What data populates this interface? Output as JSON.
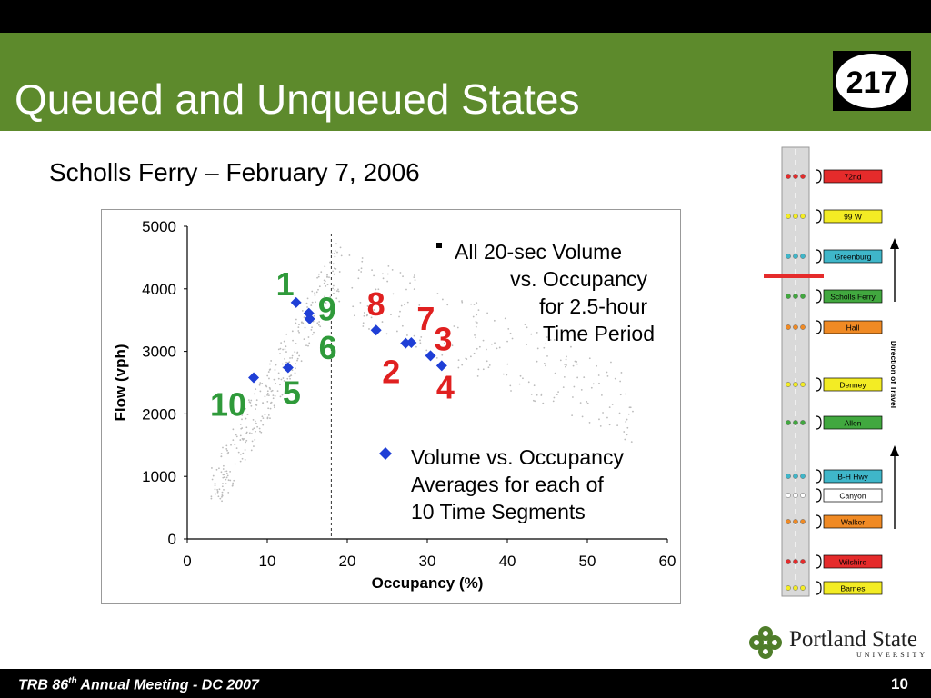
{
  "slide": {
    "title": "Queued and Unqueued States",
    "subtitle": "Scholls Ferry – February 7, 2006",
    "route_shield": "217",
    "footer": {
      "prefix": "TRB 86",
      "sup": "th",
      "suffix": " Annual Meeting - DC 2007"
    },
    "page_number": "10",
    "logo": {
      "name": "Portland State",
      "sub": "UNIVERSITY"
    }
  },
  "colors": {
    "title_bar": "#5d8a2c",
    "series_marker": "#1f3fd6",
    "label_green": "#2f9a3a",
    "label_red": "#e02020"
  },
  "chart_data": {
    "type": "scatter",
    "xlabel": "Occupancy (%)",
    "ylabel": "Flow (vph)",
    "xlim": [
      0,
      60
    ],
    "ylim": [
      0,
      5000
    ],
    "xticks": [
      "0",
      "10",
      "20",
      "30",
      "40",
      "50",
      "60"
    ],
    "yticks": [
      "0",
      "1000",
      "2000",
      "3000",
      "4000",
      "5000"
    ],
    "grid": false,
    "threshold_line_x": 18,
    "legend_top": [
      "All 20-sec Volume",
      "vs. Occupancy",
      "for 2.5-hour",
      "Time Period"
    ],
    "legend_bottom": [
      "Volume vs. Occupancy",
      "Averages for each of",
      "10 Time Segments"
    ],
    "series": [
      {
        "marker": "diamond",
        "points": [
          {
            "label": "1",
            "x": 13.6,
            "y": 3780,
            "group": "unqueued"
          },
          {
            "label": "9",
            "x": 15.2,
            "y": 3610,
            "group": "unqueued"
          },
          {
            "label": "6",
            "x": 15.3,
            "y": 3520,
            "group": "unqueued"
          },
          {
            "label": "5",
            "x": 12.6,
            "y": 2740,
            "group": "unqueued"
          },
          {
            "label": "10",
            "x": 8.3,
            "y": 2580,
            "group": "unqueued"
          },
          {
            "label": "8",
            "x": 23.6,
            "y": 3340,
            "group": "queued"
          },
          {
            "label": "7",
            "x": 28.0,
            "y": 3140,
            "group": "queued"
          },
          {
            "label": "2",
            "x": 27.3,
            "y": 3130,
            "group": "queued"
          },
          {
            "label": "3",
            "x": 30.4,
            "y": 2930,
            "group": "queued"
          },
          {
            "label": "4",
            "x": 31.8,
            "y": 2770,
            "group": "queued"
          }
        ]
      }
    ]
  },
  "corridor": {
    "stations": [
      {
        "name": "72nd",
        "color": "#e52b2b"
      },
      {
        "name": "99 W",
        "color": "#f3ec24"
      },
      {
        "name": "Greenburg",
        "color": "#3fb6c9"
      },
      {
        "name": "Scholls Ferry",
        "color": "#41a83f"
      },
      {
        "name": "Hall",
        "color": "#f08a24"
      },
      {
        "name": "Denney",
        "color": "#f3ec24"
      },
      {
        "name": "Allen",
        "color": "#41a83f"
      },
      {
        "name": "B-H Hwy",
        "color": "#3fb6c9"
      },
      {
        "name": "Canyon",
        "color": "#ffffff"
      },
      {
        "name": "Walker",
        "color": "#f08a24"
      },
      {
        "name": "Wilshire",
        "color": "#e52b2b"
      },
      {
        "name": "Barnes",
        "color": "#f3ec24"
      }
    ],
    "direction_label": "Direction of Travel"
  }
}
